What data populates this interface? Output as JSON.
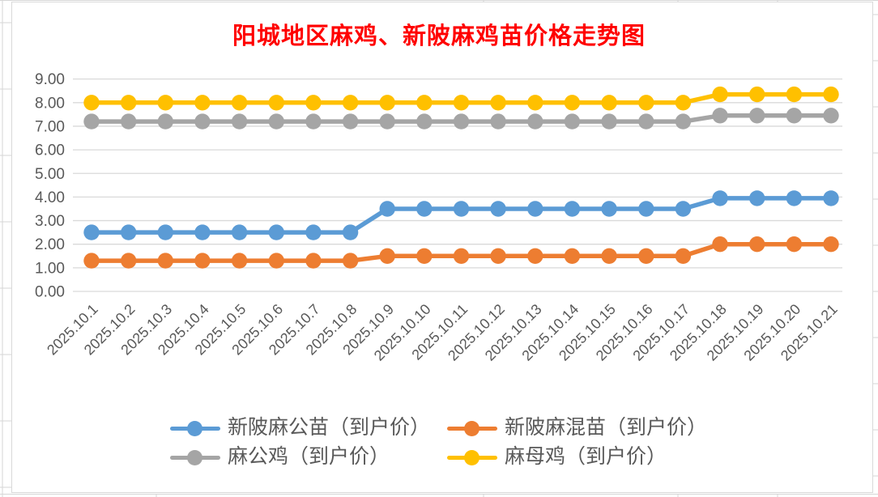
{
  "title": {
    "text": "阳城地区麻鸡、新陂麻鸡苗价格走势图",
    "color": "#FF0000"
  },
  "axis": {
    "label_color": "#595959",
    "grid_color": "#D9D9D9",
    "frame_color": "#D9D9D9",
    "sheet_line_color": "#D6D6D6"
  },
  "chart_data": {
    "type": "line",
    "title": "阳城地区麻鸡、新陂麻鸡苗价格走势图",
    "categories": [
      "2025.10.1",
      "2025.10.2",
      "2025.10.3",
      "2025.10.4",
      "2025.10.5",
      "2025.10.6",
      "2025.10.7",
      "2025.10.8",
      "2025.10.9",
      "2025.10.10",
      "2025.10.11",
      "2025.10.12",
      "2025.10.13",
      "2025.10.14",
      "2025.10.15",
      "2025.10.16",
      "2025.10.17",
      "2025.10.18",
      "2025.10.19",
      "2025.10.20",
      "2025.10.21"
    ],
    "series": [
      {
        "name": "新陂麻公苗（到户价）",
        "color": "#5B9BD5",
        "values": [
          2.5,
          2.5,
          2.5,
          2.5,
          2.5,
          2.5,
          2.5,
          2.5,
          3.5,
          3.5,
          3.5,
          3.5,
          3.5,
          3.5,
          3.5,
          3.5,
          3.5,
          3.95,
          3.95,
          3.95,
          3.95
        ]
      },
      {
        "name": "新陂麻混苗（到户价）",
        "color": "#ED7D31",
        "values": [
          1.3,
          1.3,
          1.3,
          1.3,
          1.3,
          1.3,
          1.3,
          1.3,
          1.5,
          1.5,
          1.5,
          1.5,
          1.5,
          1.5,
          1.5,
          1.5,
          1.5,
          2.0,
          2.0,
          2.0,
          2.0
        ]
      },
      {
        "name": "麻公鸡（到户价）",
        "color": "#A5A5A5",
        "values": [
          7.2,
          7.2,
          7.2,
          7.2,
          7.2,
          7.2,
          7.2,
          7.2,
          7.2,
          7.2,
          7.2,
          7.2,
          7.2,
          7.2,
          7.2,
          7.2,
          7.2,
          7.45,
          7.45,
          7.45,
          7.45
        ]
      },
      {
        "name": "麻母鸡（到户价）",
        "color": "#FFC000",
        "values": [
          8.0,
          8.0,
          8.0,
          8.0,
          8.0,
          8.0,
          8.0,
          8.0,
          8.0,
          8.0,
          8.0,
          8.0,
          8.0,
          8.0,
          8.0,
          8.0,
          8.0,
          8.35,
          8.35,
          8.35,
          8.35
        ]
      }
    ],
    "ylim": [
      0,
      9
    ],
    "ytick_step": 1.0,
    "ytick_decimals": 2,
    "ytick_labels": [
      "0.00",
      "1.00",
      "2.00",
      "3.00",
      "4.00",
      "5.00",
      "6.00",
      "7.00",
      "8.00",
      "9.00"
    ],
    "grid": true,
    "xlabel": "",
    "ylabel": "",
    "legend_position": "bottom"
  }
}
